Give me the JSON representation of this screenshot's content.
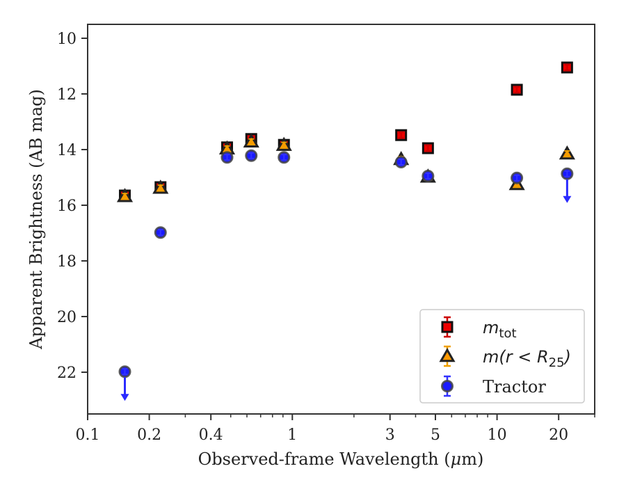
{
  "chart_data": {
    "type": "scatter",
    "xlabel_main": "Observed-frame Wavelength (",
    "xlabel_mu": "μ",
    "xlabel_tail": "m)",
    "ylabel": "Apparent Brightness (AB mag)",
    "xscale": "log",
    "xlim": [
      0.1,
      30
    ],
    "ylim": [
      23.5,
      9.5
    ],
    "y_inverted": true,
    "xticks": [
      {
        "value": 0.1,
        "label": "0.1"
      },
      {
        "value": 0.2,
        "label": "0.2"
      },
      {
        "value": 0.4,
        "label": "0.4"
      },
      {
        "value": 1,
        "label": "1"
      },
      {
        "value": 3,
        "label": "3"
      },
      {
        "value": 5,
        "label": "5"
      },
      {
        "value": 10,
        "label": "10"
      },
      {
        "value": 20,
        "label": "20"
      }
    ],
    "yticks": [
      {
        "value": 10,
        "label": "10"
      },
      {
        "value": 12,
        "label": "12"
      },
      {
        "value": 14,
        "label": "14"
      },
      {
        "value": 16,
        "label": "16"
      },
      {
        "value": 18,
        "label": "18"
      },
      {
        "value": 20,
        "label": "20"
      },
      {
        "value": 22,
        "label": "22"
      }
    ],
    "legend_position": "lower-right",
    "series": [
      {
        "name": "m_tot",
        "legend_main": "m",
        "legend_sub": "tot",
        "marker": "square",
        "color": "#ee0000",
        "errcolor": "#cc0000",
        "points": [
          {
            "x": 0.152,
            "y": 15.65
          },
          {
            "x": 0.227,
            "y": 15.35
          },
          {
            "x": 0.48,
            "y": 13.92
          },
          {
            "x": 0.63,
            "y": 13.62
          },
          {
            "x": 0.91,
            "y": 13.83
          },
          {
            "x": 3.4,
            "y": 13.48
          },
          {
            "x": 4.6,
            "y": 13.95
          },
          {
            "x": 12.5,
            "y": 11.85
          },
          {
            "x": 22.0,
            "y": 11.05
          }
        ]
      },
      {
        "name": "m(r < R_25)",
        "legend_main": "m(r < R",
        "legend_sub": "25",
        "legend_tail": ")",
        "marker": "triangle",
        "color": "#ff9900",
        "errcolor": "#f0a000",
        "points": [
          {
            "x": 0.152,
            "y": 15.68
          },
          {
            "x": 0.227,
            "y": 15.38
          },
          {
            "x": 0.48,
            "y": 13.97
          },
          {
            "x": 0.63,
            "y": 13.72
          },
          {
            "x": 0.91,
            "y": 13.84
          },
          {
            "x": 3.4,
            "y": 14.35
          },
          {
            "x": 4.6,
            "y": 14.98
          },
          {
            "x": 12.5,
            "y": 15.25
          },
          {
            "x": 22.0,
            "y": 14.15
          }
        ]
      },
      {
        "name": "Tractor",
        "legend_main": "Tractor",
        "marker": "circle",
        "color": "#1a1aff",
        "errcolor": "#3333ff",
        "points": [
          {
            "x": 0.152,
            "y": 21.98,
            "upper_limit": true
          },
          {
            "x": 0.227,
            "y": 16.98
          },
          {
            "x": 0.48,
            "y": 14.28
          },
          {
            "x": 0.63,
            "y": 14.22
          },
          {
            "x": 0.91,
            "y": 14.28
          },
          {
            "x": 3.4,
            "y": 14.45
          },
          {
            "x": 4.6,
            "y": 14.95
          },
          {
            "x": 12.5,
            "y": 15.02
          },
          {
            "x": 22.0,
            "y": 14.87,
            "upper_limit": true
          }
        ]
      }
    ]
  }
}
